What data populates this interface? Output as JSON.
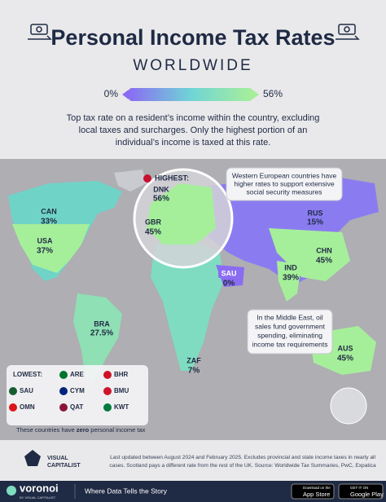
{
  "header": {
    "title": "Personal Income Tax Rates",
    "subtitle": "WORLDWIDE",
    "scale_min": "0%",
    "scale_max": "56%",
    "description": [
      "Top tax rate on a resident’s income within the country, excluding",
      "local taxes and surcharges. Only the highest portion of an",
      "individual’s income is taxed at this rate."
    ]
  },
  "map": {
    "highest_label": "HIGHEST:",
    "countries": [
      {
        "code": "CAN",
        "rate": "33%"
      },
      {
        "code": "USA",
        "rate": "37%"
      },
      {
        "code": "DNK",
        "rate": "56%"
      },
      {
        "code": "GBR",
        "rate": "45%"
      },
      {
        "code": "RUS",
        "rate": "15%"
      },
      {
        "code": "CHN",
        "rate": "45%"
      },
      {
        "code": "IND",
        "rate": "39%"
      },
      {
        "code": "SAU",
        "rate": "0%"
      },
      {
        "code": "BRA",
        "rate": "27.5%"
      },
      {
        "code": "ZAF",
        "rate": "7%"
      },
      {
        "code": "AUS",
        "rate": "45%"
      }
    ],
    "callouts": [
      [
        "Western European countries have",
        "higher rates to support extensive",
        "social security measures"
      ],
      [
        "In the Middle East, oil",
        "sales fund government",
        "spending, eliminating",
        "income tax requirements"
      ]
    ],
    "lowest": {
      "title": "LOWEST:",
      "codes": [
        "ARE",
        "BHR",
        "SAU",
        "CYM",
        "BMU",
        "OMN",
        "QAT",
        "KWT"
      ],
      "note": [
        "These countries have ",
        "zero",
        " personal income tax"
      ]
    }
  },
  "footer": {
    "notes": [
      "Last updated between August 2024 and February 2025. Excludes provincial and state income taxes in nearly all",
      "cases. Scotland pays a different rate from the rest of the UK. Source: Worldwide Tax Summaries, PwC, Expatica"
    ],
    "logo": [
      "VISUAL",
      "CAPITALIST"
    ],
    "brand": "voronoi",
    "brand_sub": "BY VISUAL CAPITALIST",
    "tagline": "Where Data Tells the Story",
    "app_store": [
      "Download on the",
      "App Store"
    ],
    "google_play": [
      "GET IT ON",
      "Google Play"
    ]
  }
}
